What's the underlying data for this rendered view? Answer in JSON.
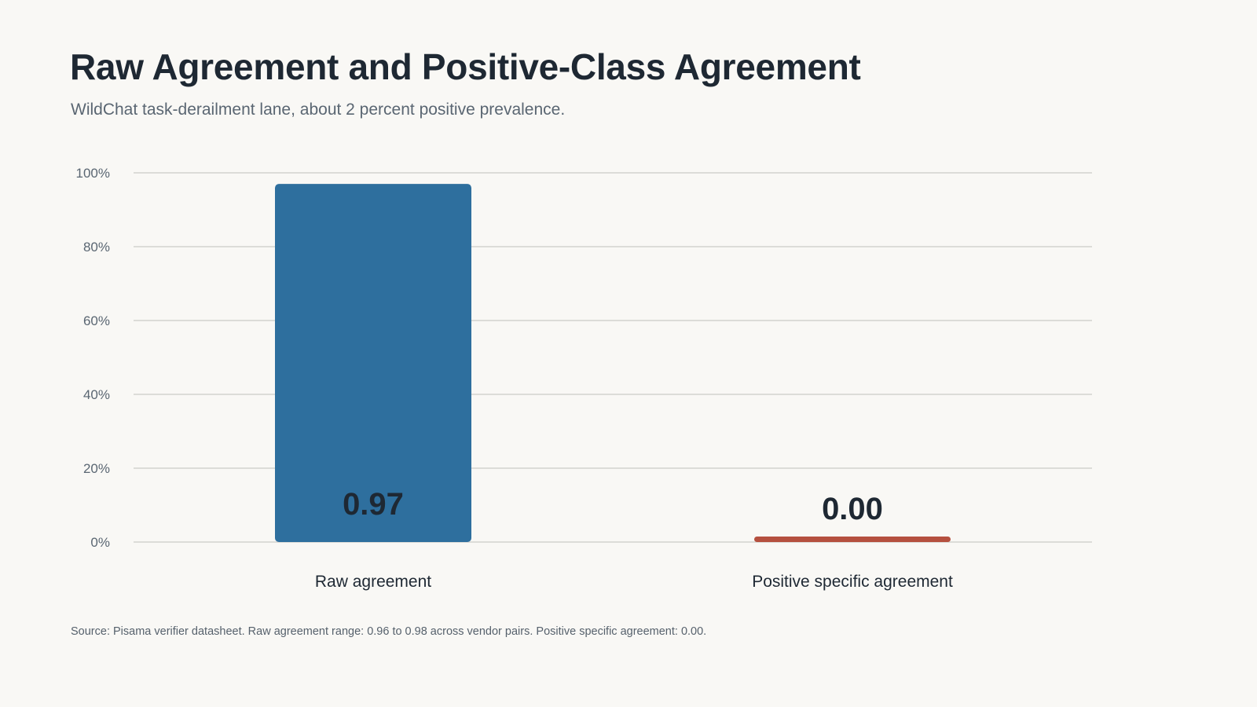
{
  "title": "Raw Agreement and Positive-Class Agreement",
  "subtitle": "WildChat task-derailment lane, about 2 percent positive prevalence.",
  "source": "Source: Pisama verifier datasheet. Raw agreement range: 0.96 to 0.98 across vendor pairs. Positive specific agreement: 0.00.",
  "chart_data": {
    "type": "bar",
    "title": "Raw Agreement and Positive-Class Agreement",
    "subtitle": "WildChat task-derailment lane, about 2 percent positive prevalence.",
    "categories": [
      "Raw agreement",
      "Positive specific agreement"
    ],
    "values": [
      0.97,
      0.0
    ],
    "value_labels": [
      "0.97",
      "0.00"
    ],
    "colors": [
      "#2e6f9e",
      "#b5503f"
    ],
    "ylim": [
      0,
      1
    ],
    "yticks": [
      {
        "value": 0,
        "label": "0%"
      },
      {
        "value": 0.2,
        "label": "20%"
      },
      {
        "value": 0.4,
        "label": "40%"
      },
      {
        "value": 0.6,
        "label": "60%"
      },
      {
        "value": 0.8,
        "label": "80%"
      },
      {
        "value": 1.0,
        "label": "100%"
      }
    ],
    "grid": true,
    "legend": "none"
  }
}
